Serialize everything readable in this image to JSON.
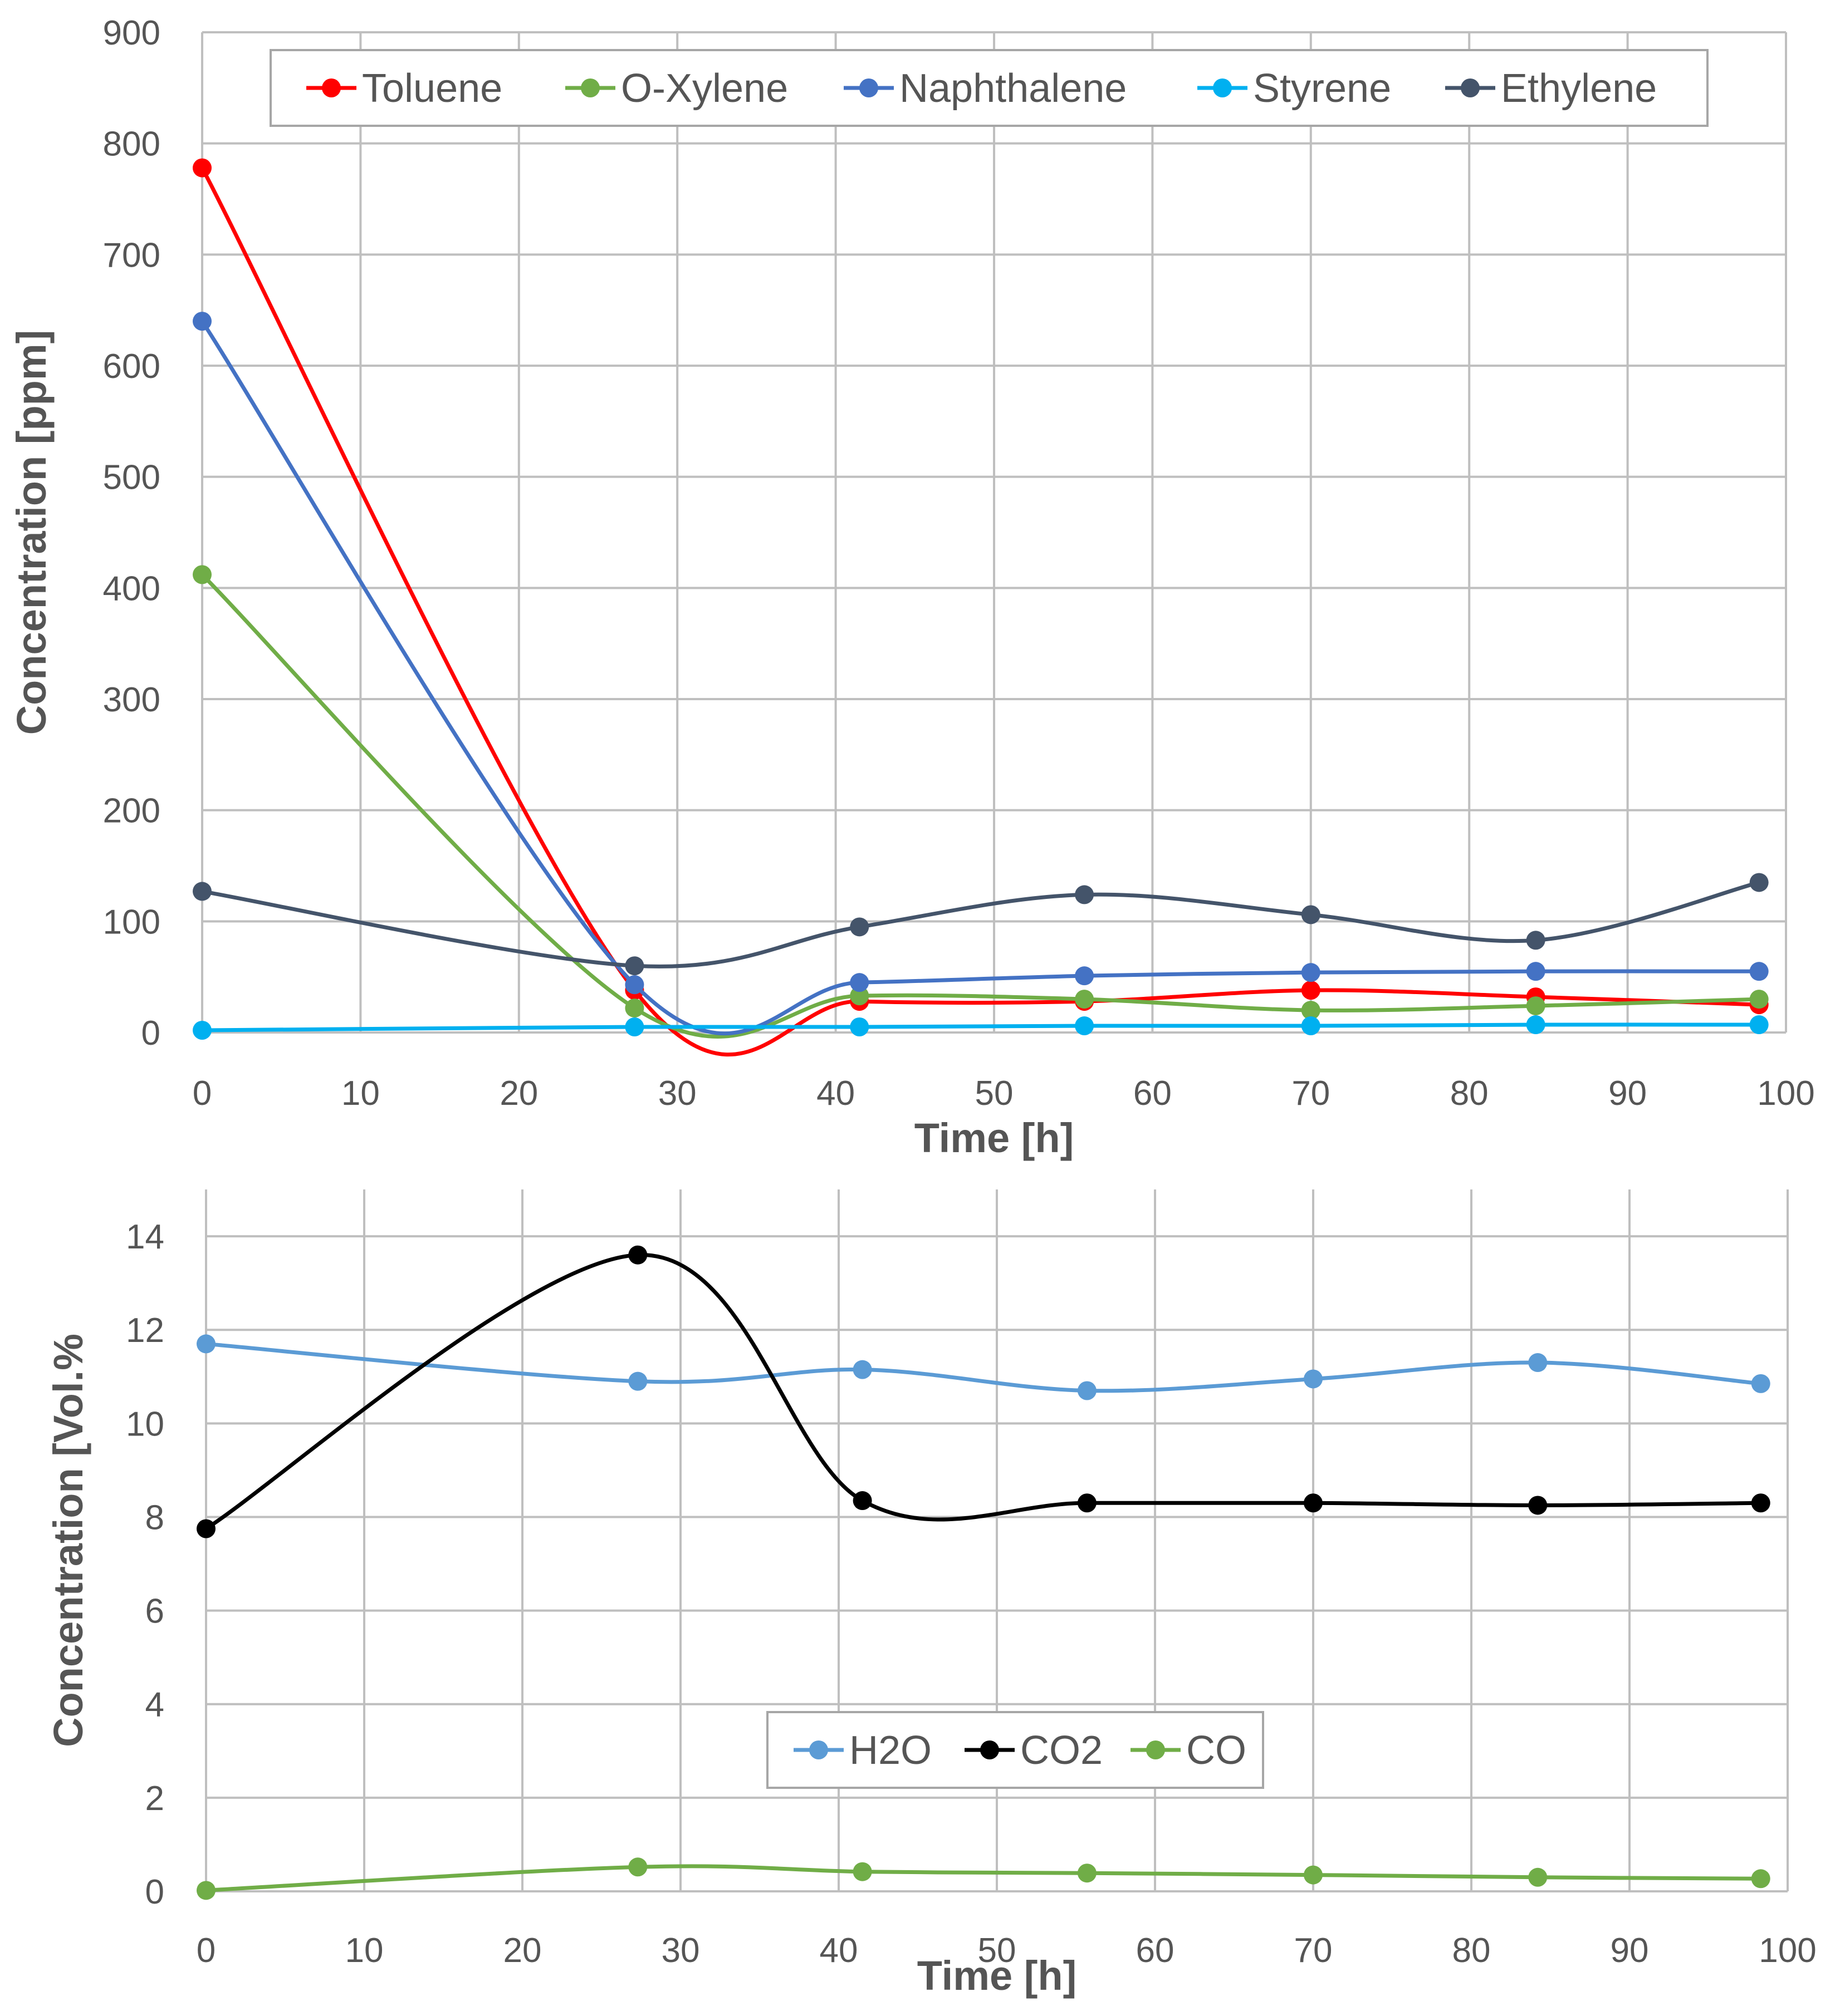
{
  "chart_data": [
    {
      "type": "line",
      "xlabel": "Time [h]",
      "ylabel": "Concentration [ppm]",
      "xlim": [
        0,
        100
      ],
      "ylim": [
        0,
        900
      ],
      "grid": true,
      "legend_position": "top",
      "x_ticks": [
        "0",
        "10",
        "20",
        "30",
        "40",
        "50",
        "60",
        "70",
        "80",
        "90",
        "100"
      ],
      "y_ticks": [
        "0",
        "100",
        "200",
        "300",
        "400",
        "500",
        "600",
        "700",
        "800",
        "900"
      ],
      "x": [
        0,
        27.3,
        41.5,
        55.7,
        70,
        84.2,
        98.3
      ],
      "series": [
        {
          "name": "Toluene",
          "color": "#ff0000",
          "values": [
            778,
            38,
            28,
            28,
            38,
            32,
            25
          ]
        },
        {
          "name": "O-Xylene",
          "color": "#70ad47",
          "values": [
            412,
            22,
            33,
            30,
            20,
            24,
            30
          ]
        },
        {
          "name": "Naphthalene",
          "color": "#4472c4",
          "values": [
            640,
            43,
            45,
            51,
            54,
            55,
            55
          ]
        },
        {
          "name": "Styrene",
          "color": "#00b0f0",
          "values": [
            2,
            5,
            5,
            6,
            6,
            7,
            7
          ]
        },
        {
          "name": "Ethylene",
          "color": "#44546a",
          "values": [
            127,
            60,
            95,
            124,
            106,
            83,
            135
          ]
        }
      ]
    },
    {
      "type": "line",
      "xlabel": "Time [h]",
      "ylabel": "Concentration [Vol.%",
      "xlim": [
        0,
        100
      ],
      "ylim": [
        0,
        15
      ],
      "grid": true,
      "legend_position": "bottom-center",
      "x_ticks": [
        "0",
        "10",
        "20",
        "30",
        "40",
        "50",
        "60",
        "70",
        "80",
        "90",
        "100"
      ],
      "y_ticks": [
        "0",
        "2",
        "4",
        "6",
        "8",
        "10",
        "12",
        "14"
      ],
      "x": [
        0,
        27.3,
        41.5,
        55.7,
        70,
        84.2,
        98.3
      ],
      "series": [
        {
          "name": "H2O",
          "color": "#5b9bd5",
          "values": [
            11.7,
            10.9,
            11.15,
            10.7,
            10.95,
            11.3,
            10.85
          ]
        },
        {
          "name": "CO2",
          "color": "#000000",
          "values": [
            7.75,
            13.6,
            8.35,
            8.3,
            8.3,
            8.25,
            8.3
          ]
        },
        {
          "name": "CO",
          "color": "#70ad47",
          "values": [
            0.02,
            0.52,
            0.42,
            0.39,
            0.35,
            0.3,
            0.27
          ]
        }
      ]
    }
  ]
}
